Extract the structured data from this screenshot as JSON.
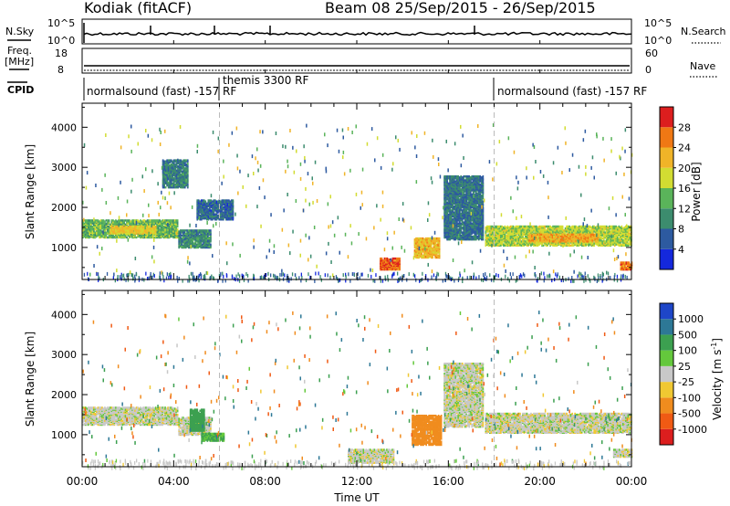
{
  "header": {
    "title_left": "Kodiak (fitACF)",
    "title_right": "Beam 08  25/Sep/2015 - 26/Sep/2015"
  },
  "side_labels": {
    "nsky": "N.Sky",
    "freq_line1": "Freq.",
    "freq_line2": "[MHz]",
    "cpid": "CPID",
    "nsearch": "N.Search",
    "nave": "Nave"
  },
  "small_axes": {
    "nsky_top": "10^5",
    "nsky_bottom": "10^0",
    "nsearch_top": "10^5",
    "nsearch_bottom": "10^0",
    "freq_top": "18",
    "freq_bottom": "8",
    "nave_top": "60",
    "nave_bottom": "0"
  },
  "cpid_segments": [
    {
      "label": "normalsound (fast) -157 RF",
      "start": 0
    },
    {
      "label": "themis 3300 RF",
      "start": 6
    },
    {
      "label": "normalsound (fast) -157 RF",
      "start": 18
    }
  ],
  "power_colorbar": {
    "label": "Power [dB]",
    "ticks": [
      "4",
      "8",
      "12",
      "16",
      "20",
      "24",
      "28"
    ],
    "colors": [
      "#1428dc",
      "#2d5aa0",
      "#3c8c6e",
      "#5ab45a",
      "#d2dc32",
      "#f0b428",
      "#f07814",
      "#dc1e1e"
    ]
  },
  "velocity_colorbar": {
    "label": "Velocity [m s^-1]",
    "ticks": [
      "1000",
      "500",
      "100",
      "25",
      "-25",
      "-100",
      "-500",
      "-1000"
    ],
    "colors": [
      "#1e46c8",
      "#2d7896",
      "#3ca050",
      "#64c83c",
      "#c8c8c8",
      "#f0c832",
      "#f08c1e",
      "#f05a14",
      "#dc1e1e"
    ]
  },
  "x_ticks": [
    "00:00",
    "04:00",
    "08:00",
    "12:00",
    "16:00",
    "20:00",
    "00:00"
  ],
  "x_label": "Time UT",
  "y_label": "Slant Range [km]",
  "y_ticks": [
    "1000",
    "2000",
    "3000",
    "4000"
  ],
  "chart_data": [
    {
      "type": "heatmap",
      "title": "Power",
      "xlabel": "Time UT",
      "ylabel": "Slant Range [km]",
      "xlim": [
        0,
        24
      ],
      "ylim": [
        200,
        4600
      ],
      "colorbar_label": "Power [dB]",
      "colorbar_range": [
        0,
        30
      ],
      "regions": [
        {
          "t0": 0.0,
          "t1": 4.2,
          "r0": 1250,
          "r1": 1700,
          "value": 14
        },
        {
          "t0": 1.2,
          "t1": 3.2,
          "r0": 1350,
          "r1": 1550,
          "value": 20
        },
        {
          "t0": 4.2,
          "t1": 5.6,
          "r0": 1000,
          "r1": 1450,
          "value": 10
        },
        {
          "t0": 3.5,
          "t1": 4.6,
          "r0": 2500,
          "r1": 3200,
          "value": 9
        },
        {
          "t0": 5.0,
          "t1": 6.6,
          "r0": 1700,
          "r1": 2200,
          "value": 7
        },
        {
          "t0": 13.0,
          "t1": 13.9,
          "r0": 450,
          "r1": 750,
          "value": 27
        },
        {
          "t0": 14.5,
          "t1": 15.6,
          "r0": 750,
          "r1": 1250,
          "value": 22
        },
        {
          "t0": 15.8,
          "t1": 17.5,
          "r0": 1200,
          "r1": 2800,
          "value": 8
        },
        {
          "t0": 17.6,
          "t1": 24.0,
          "r0": 1050,
          "r1": 1550,
          "value": 17
        },
        {
          "t0": 19.5,
          "t1": 22.5,
          "r0": 1150,
          "r1": 1350,
          "value": 23
        },
        {
          "t0": 23.5,
          "t1": 24.0,
          "r0": 450,
          "r1": 650,
          "value": 26
        }
      ]
    },
    {
      "type": "heatmap",
      "title": "Velocity",
      "xlabel": "Time UT",
      "ylabel": "Slant Range [km]",
      "xlim": [
        0,
        24
      ],
      "ylim": [
        200,
        4600
      ],
      "colorbar_label": "Velocity [m s^-1]",
      "colorbar_range": [
        -1000,
        1000
      ],
      "regions": [
        {
          "t0": 0.0,
          "t1": 4.2,
          "r0": 1250,
          "r1": 1700,
          "value": 0
        },
        {
          "t0": 4.2,
          "t1": 5.6,
          "r0": 1000,
          "r1": 1450,
          "value": 0
        },
        {
          "t0": 4.7,
          "t1": 5.3,
          "r0": 1100,
          "r1": 1650,
          "value": 200
        },
        {
          "t0": 5.2,
          "t1": 6.2,
          "r0": 850,
          "r1": 1050,
          "value": 110
        },
        {
          "t0": 11.6,
          "t1": 13.6,
          "r0": 300,
          "r1": 650,
          "value": 0
        },
        {
          "t0": 14.4,
          "t1": 15.7,
          "r0": 750,
          "r1": 1500,
          "value": -350
        },
        {
          "t0": 15.8,
          "t1": 17.5,
          "r0": 1200,
          "r1": 2800,
          "value": 0
        },
        {
          "t0": 17.6,
          "t1": 24.0,
          "r0": 1050,
          "r1": 1550,
          "value": 0
        },
        {
          "t0": 23.2,
          "t1": 24.0,
          "r0": 450,
          "r1": 650,
          "value": 0
        }
      ]
    }
  ]
}
